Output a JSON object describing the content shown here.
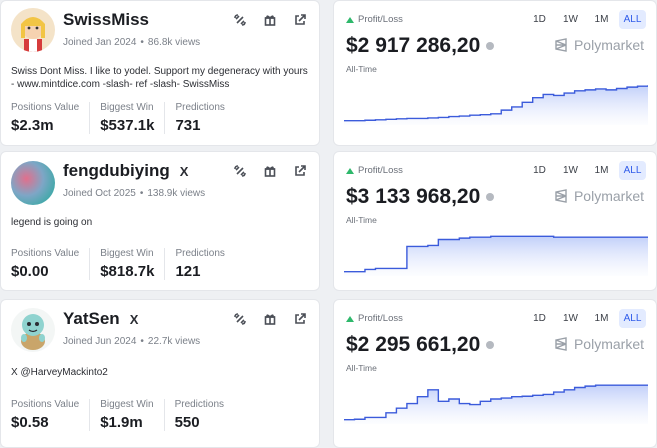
{
  "profiles": [
    {
      "name": "SwissMiss",
      "verified_x": false,
      "joined": "Joined Jan 2024",
      "views": "86.8k views",
      "bio": "Swiss Dont Miss. I like to yodel. Support my degeneracy with yours - www.mintdice.com -slash- ref -slash- SwissMiss",
      "stats": [
        {
          "label": "Positions Value",
          "value": "$2.3m"
        },
        {
          "label": "Biggest Win",
          "value": "$537.1k"
        },
        {
          "label": "Predictions",
          "value": "731"
        }
      ],
      "avatar": "cartoon-girl-avatar"
    },
    {
      "name": "fengdubiying",
      "verified_x": true,
      "x_label": "X",
      "joined": "Joined Oct 2025",
      "views": "138.9k views",
      "bio": "legend is going on",
      "stats": [
        {
          "label": "Positions Value",
          "value": "$0.00"
        },
        {
          "label": "Biggest Win",
          "value": "$818.7k"
        },
        {
          "label": "Predictions",
          "value": "121"
        }
      ],
      "avatar": "gradient-avatar"
    },
    {
      "name": "YatSen",
      "verified_x": true,
      "x_label": "X",
      "joined": "Joined Jun 2024",
      "views": "22.7k views",
      "bio": "X @HarveyMackinto2",
      "stats": [
        {
          "label": "Positions Value",
          "value": "$0.58"
        },
        {
          "label": "Biggest Win",
          "value": "$1.9m"
        },
        {
          "label": "Predictions",
          "value": "550"
        }
      ],
      "avatar": "squirtle-avatar"
    }
  ],
  "pnl_cards": [
    {
      "label": "Profit/Loss",
      "amount": "$2 917 286,20",
      "period": "All-Time",
      "brand": "Polymarket",
      "ranges": [
        "1D",
        "1W",
        "1M",
        "ALL"
      ],
      "active_range": "ALL"
    },
    {
      "label": "Profit/Loss",
      "amount": "$3 133 968,20",
      "period": "All-Time",
      "brand": "Polymarket",
      "ranges": [
        "1D",
        "1W",
        "1M",
        "ALL"
      ],
      "active_range": "ALL"
    },
    {
      "label": "Profit/Loss",
      "amount": "$2 295 661,20",
      "period": "All-Time",
      "brand": "Polymarket",
      "ranges": [
        "1D",
        "1W",
        "1M",
        "ALL"
      ],
      "active_range": "ALL"
    }
  ],
  "icons": {
    "copy": "copy-icon",
    "gift": "gift-icon",
    "share": "share-icon",
    "profit_up": "triangle-up-icon",
    "info": "info-icon",
    "brand": "polymarket-logo-icon"
  },
  "colors": {
    "accent": "#2f5bea",
    "line": "#3b5bdb",
    "up": "#2eb86b"
  },
  "chart_data": [
    {
      "type": "area",
      "y": [
        0.05,
        0.05,
        0.06,
        0.07,
        0.08,
        0.09,
        0.1,
        0.1,
        0.11,
        0.12,
        0.14,
        0.15,
        0.17,
        0.18,
        0.2,
        0.28,
        0.35,
        0.45,
        0.55,
        0.62,
        0.6,
        0.65,
        0.7,
        0.72,
        0.74,
        0.72,
        0.75,
        0.78,
        0.8,
        0.82
      ]
    },
    {
      "type": "area",
      "y": [
        0.05,
        0.05,
        0.1,
        0.12,
        0.12,
        0.12,
        0.6,
        0.6,
        0.62,
        0.75,
        0.75,
        0.78,
        0.8,
        0.8,
        0.82,
        0.82,
        0.82,
        0.82,
        0.82,
        0.82,
        0.8,
        0.8,
        0.8,
        0.8,
        0.8,
        0.8,
        0.8,
        0.8,
        0.8,
        0.8
      ]
    },
    {
      "type": "area",
      "y": [
        0.05,
        0.06,
        0.1,
        0.1,
        0.2,
        0.3,
        0.4,
        0.55,
        0.7,
        0.45,
        0.5,
        0.4,
        0.38,
        0.45,
        0.5,
        0.52,
        0.55,
        0.56,
        0.58,
        0.6,
        0.65,
        0.7,
        0.75,
        0.78,
        0.8,
        0.8,
        0.8,
        0.8,
        0.8,
        0.8
      ]
    }
  ]
}
